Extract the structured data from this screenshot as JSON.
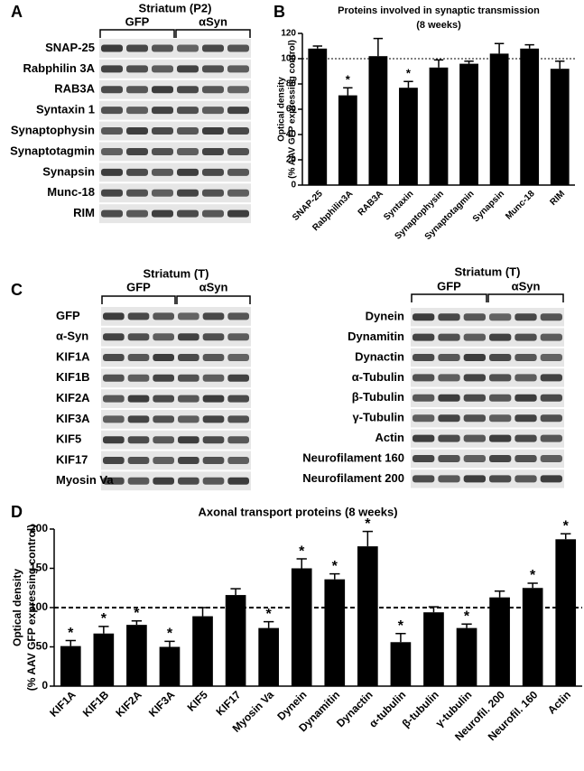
{
  "panel_labels": [
    "A",
    "B",
    "C",
    "D"
  ],
  "blots": [
    {
      "title": "Striatum (P2)",
      "groups": [
        "GFP",
        "αSyn"
      ],
      "rows": [
        "SNAP-25",
        "Rabphilin 3A",
        "RAB3A",
        "Syntaxin 1",
        "Synaptophysin",
        "Synaptotagmin",
        "Synapsin",
        "Munc-18",
        "RIM"
      ]
    },
    {
      "title": "Striatum (T)",
      "groups": [
        "GFP",
        "αSyn"
      ],
      "rows": [
        "GFP",
        "α-Syn",
        "KIF1A",
        "KIF1B",
        "KIF2A",
        "KIF3A",
        "KIF5",
        "KIF17",
        "Myosin Va"
      ]
    },
    {
      "title": "Striatum (T)",
      "groups": [
        "GFP",
        "αSyn"
      ],
      "rows": [
        "Dynein",
        "Dynamitin",
        "Dynactin",
        "α-Tubulin",
        "β-Tubulin",
        "γ-Tubulin",
        "Actin",
        "Neurofilament 160",
        "Neurofilament 200"
      ]
    }
  ],
  "chart_data": [
    {
      "type": "bar",
      "title": "Proteins involved in synaptic transmission",
      "subtitle": "(8 weeks)",
      "y_label": "Optical density",
      "y_label_2": "(% AAV GFP expressing control)",
      "categories": [
        "SNAP-25",
        "Rabphilin3A",
        "RAB3A",
        "Syntaxin",
        "Synaptophysin",
        "Synaptotagmin",
        "Synapsin",
        "Munc-18",
        "RIM"
      ],
      "values": [
        108,
        71,
        102,
        77,
        93,
        96,
        104,
        108,
        92
      ],
      "errors": [
        2,
        6,
        14,
        5,
        6,
        2,
        8,
        3,
        6
      ],
      "significant": [
        false,
        true,
        false,
        true,
        false,
        false,
        false,
        false,
        false
      ],
      "significance_label": "*",
      "reference_line": 100,
      "color": "#000000",
      "ylim": [
        0,
        120
      ],
      "yticks": [
        0,
        20,
        40,
        60,
        80,
        100,
        120
      ]
    },
    {
      "type": "bar",
      "title": "Axonal transport proteins (8 weeks)",
      "y_label": "Optical density",
      "y_label_2": "(% AAV GFP expressing control)",
      "categories": [
        "KIF1A",
        "KIF1B",
        "KIF2A",
        "KIF3A",
        "KIF5",
        "KIF17",
        "Myosin Va",
        "Dynein",
        "Dynamitin",
        "Dynactin",
        "α-tubulin",
        "β-tubulin",
        "γ-tubulin",
        "Neurofil. 200",
        "Neurofil. 160",
        "Actin"
      ],
      "values": [
        51,
        67,
        78,
        50,
        89,
        116,
        74,
        150,
        136,
        178,
        56,
        94,
        74,
        113,
        125,
        187
      ],
      "errors": [
        7,
        9,
        5,
        7,
        11,
        8,
        8,
        12,
        7,
        19,
        11,
        7,
        5,
        8,
        6,
        7
      ],
      "significant": [
        true,
        true,
        true,
        true,
        false,
        false,
        true,
        true,
        true,
        true,
        true,
        false,
        true,
        false,
        true,
        true
      ],
      "significance_label": "*",
      "reference_line": 100,
      "color": "#000000",
      "ylim": [
        0,
        200
      ],
      "yticks": [
        0,
        50,
        100,
        150,
        200
      ]
    }
  ]
}
